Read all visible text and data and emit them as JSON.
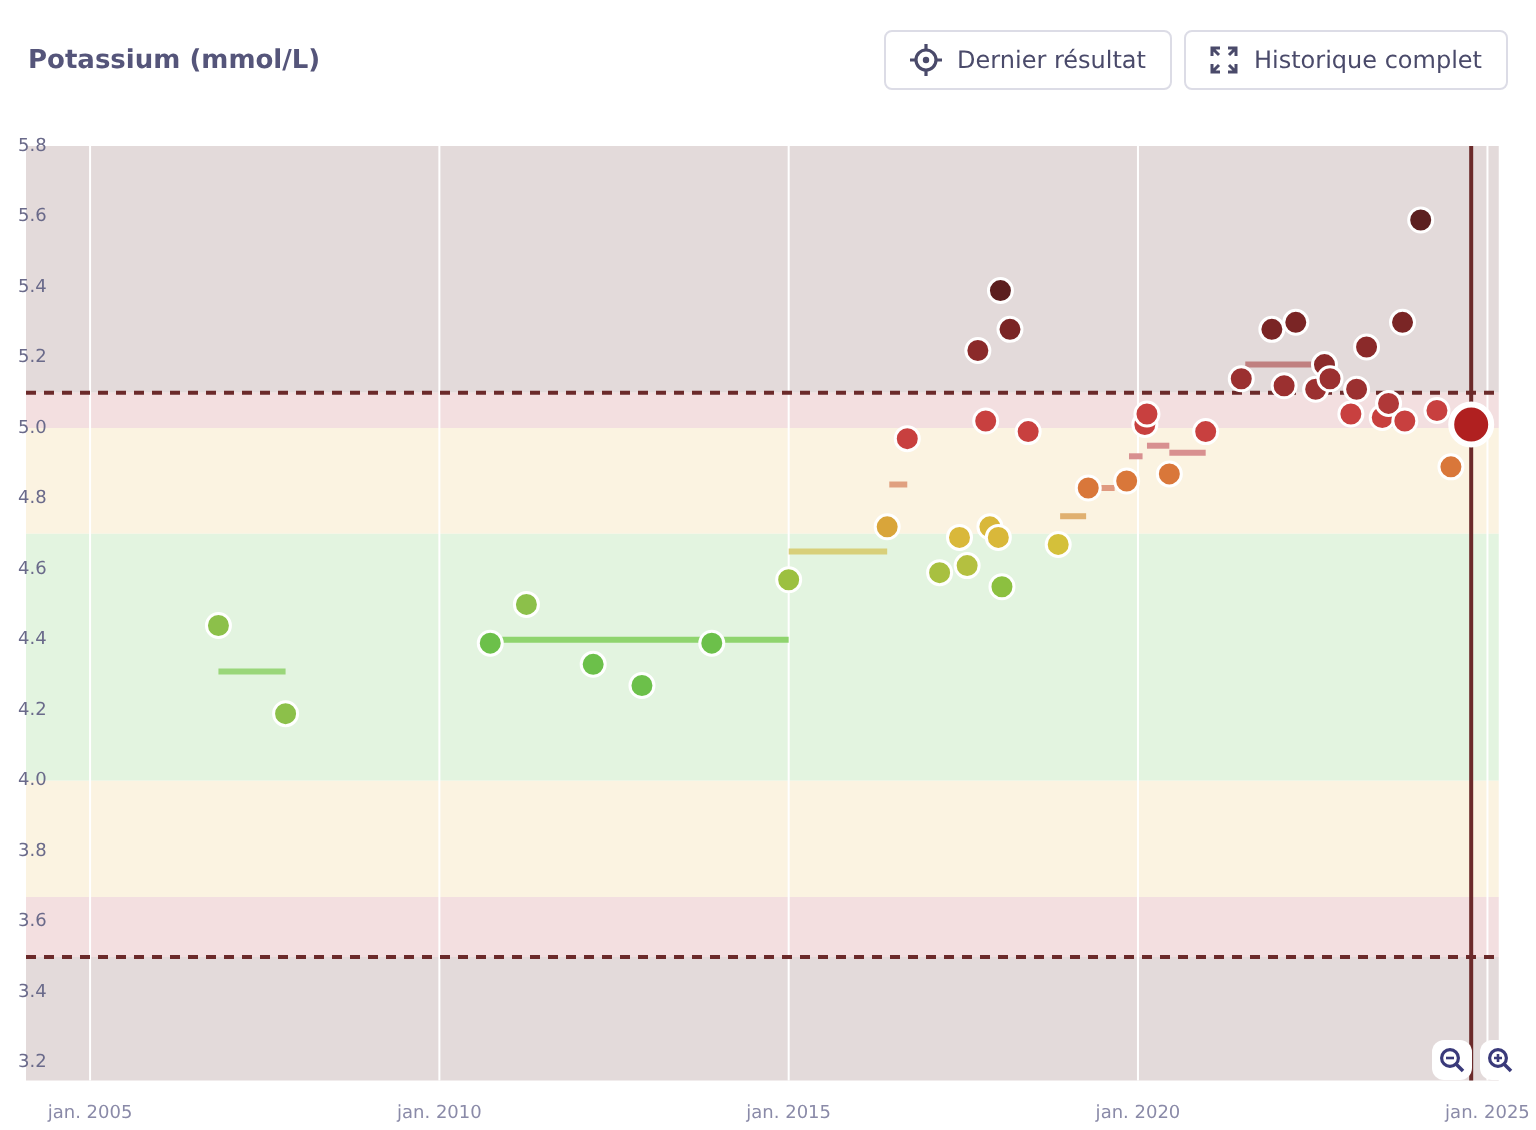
{
  "chart_data": {
    "type": "scatter",
    "title": "Potassium (mmol/L)",
    "annotations": [
      "Dernier résultat",
      "Historique complet"
    ],
    "xlim": [
      "2004-02-01",
      "2025-03-01"
    ],
    "ylim": [
      3.15,
      5.8
    ],
    "xticks": [
      {
        "value": "2005-01-01",
        "label": "jan. 2005"
      },
      {
        "value": "2010-01-01",
        "label": "jan. 2010"
      },
      {
        "value": "2015-01-01",
        "label": "jan. 2015"
      },
      {
        "value": "2020-01-01",
        "label": "jan. 2020"
      },
      {
        "value": "2025-01-01",
        "label": "jan. 2025"
      }
    ],
    "yticks": [
      3.2,
      3.4,
      3.6,
      3.8,
      {
        "value": 4,
        "label": "4.0"
      },
      4.2,
      4.4,
      4.6,
      4.8,
      {
        "value": 5,
        "label": "5.0"
      },
      5.2,
      5.4,
      5.6,
      5.8
    ],
    "grid": "x",
    "legend": false,
    "marker": "circle",
    "bands": [
      {
        "axis": "y",
        "from": 5.1,
        "to": 5.8,
        "color": "#e3dada"
      },
      {
        "axis": "y",
        "from": 5.0,
        "to": 5.1,
        "color": "#f3dfe0"
      },
      {
        "axis": "y",
        "from": 4.7,
        "to": 5.0,
        "color": "#fbf3e1"
      },
      {
        "axis": "y",
        "from": 4.0,
        "to": 4.7,
        "color": "#e3f4e0"
      },
      {
        "axis": "y",
        "from": 3.67,
        "to": 4.0,
        "color": "#fbf3e1"
      },
      {
        "axis": "y",
        "from": 3.5,
        "to": 3.67,
        "color": "#f3dfe0"
      },
      {
        "axis": "y",
        "from": 3.15,
        "to": 3.5,
        "color": "#e3dada"
      }
    ],
    "ref_lines": [
      {
        "axis": "y",
        "value": 5.1,
        "color": "#6b2a2a",
        "line_style": "dashed"
      },
      {
        "axis": "y",
        "value": 3.5,
        "color": "#6b2a2a",
        "line_style": "dashed"
      },
      {
        "axis": "x",
        "value": "2024-10-08",
        "color": "#6b2a2a",
        "line_style": "solid"
      }
    ],
    "series": [
      {
        "type": "line",
        "marker": "none",
        "color": "#9ad67a",
        "x": [
          "2006-11-03",
          "2007-10-20"
        ],
        "values": [
          4.31,
          4.31
        ]
      },
      {
        "type": "line",
        "marker": "none",
        "color": "#8fd46e",
        "x": [
          "2010-09-24",
          "2015-01-01"
        ],
        "values": [
          4.4,
          4.4
        ]
      },
      {
        "type": "line",
        "marker": "none",
        "color": "#d8cf7a",
        "x": [
          "2015-01-01",
          "2016-05-30"
        ],
        "values": [
          4.65,
          4.65
        ]
      },
      {
        "type": "line",
        "marker": "none",
        "color": "#e0a080",
        "x": [
          "2016-06-10",
          "2016-09-12"
        ],
        "values": [
          4.84,
          4.84
        ]
      },
      {
        "type": "line",
        "marker": "none",
        "color": "#e0b070",
        "x": [
          "2018-11-20",
          "2019-04-05"
        ],
        "values": [
          4.75,
          4.75
        ]
      },
      {
        "type": "line",
        "marker": "none",
        "color": "#e09a80",
        "x": [
          "2019-06-20",
          "2019-09-01"
        ],
        "values": [
          4.83,
          4.83
        ]
      },
      {
        "type": "line",
        "marker": "none",
        "color": "#d89090",
        "x": [
          "2019-11-15",
          "2020-01-25"
        ],
        "values": [
          4.92,
          4.92
        ]
      },
      {
        "type": "line",
        "marker": "none",
        "color": "#d89090",
        "x": [
          "2020-02-17",
          "2020-06-13"
        ],
        "values": [
          4.95,
          4.95
        ]
      },
      {
        "type": "line",
        "marker": "none",
        "color": "#d89090",
        "x": [
          "2020-06-13",
          "2020-12-20"
        ],
        "values": [
          4.93,
          4.93
        ]
      },
      {
        "type": "line",
        "marker": "none",
        "color": "#c08080",
        "x": [
          "2021-07-15",
          "2022-06-28"
        ],
        "values": [
          5.18,
          5.18
        ]
      },
      {
        "x": [
          "2006-11-03",
          "2007-10-20",
          "2010-09-24",
          "2011-04-01",
          "2012-03-15",
          "2012-11-25",
          "2013-11-25",
          "2015-01-01",
          "2016-05-30",
          "2016-09-12",
          "2017-02-28",
          "2017-06-12",
          "2017-07-22",
          "2017-09-16",
          "2017-10-27",
          "2017-11-18",
          "2018-01-01",
          "2018-01-12",
          "2018-01-20",
          "2018-03-03",
          "2018-06-06",
          "2018-11-10",
          "2019-04-16",
          "2019-11-03",
          "2020-02-06",
          "2020-02-17",
          "2020-06-13",
          "2020-12-20",
          "2021-06-24",
          "2021-12-01",
          "2022-02-03",
          "2022-04-05",
          "2022-07-18",
          "2022-09-02",
          "2022-10-01",
          "2023-01-18",
          "2023-02-17",
          "2023-04-10",
          "2023-07-01",
          "2023-08-03",
          "2023-10-15",
          "2023-10-27",
          "2024-01-18",
          "2024-04-12",
          "2024-06-24"
        ],
        "values": [
          4.44,
          4.19,
          4.39,
          4.5,
          4.33,
          4.27,
          4.39,
          4.57,
          4.72,
          4.97,
          4.59,
          4.69,
          4.61,
          5.22,
          5.02,
          4.72,
          4.69,
          5.39,
          4.55,
          5.28,
          4.99,
          4.67,
          4.83,
          4.85,
          5.01,
          5.04,
          4.87,
          4.99,
          5.14,
          5.28,
          5.12,
          5.3,
          5.11,
          5.18,
          5.14,
          5.04,
          5.11,
          5.23,
          5.03,
          5.07,
          5.3,
          5.02,
          5.59,
          5.05,
          4.89
        ],
        "colors": [
          "#8cc04a",
          "#8cc04a",
          "#6cc04a",
          "#8cc04a",
          "#6cc04a",
          "#6cc04a",
          "#6cc04a",
          "#9cc040",
          "#d9a53a",
          "#c8403f",
          "#a8c040",
          "#d9b83a",
          "#b4c040",
          "#8b2a2a",
          "#c8403f",
          "#d9b83a",
          "#d9b83a",
          "#5c1f1f",
          "#8cc040",
          "#7a2525",
          "#c8403f",
          "#d4c03a",
          "#d9773a",
          "#d9773a",
          "#c8403f",
          "#c8403f",
          "#d9773a",
          "#c8403f",
          "#9b3030",
          "#7a2525",
          "#9b3030",
          "#7a2525",
          "#9b3030",
          "#8b2a2a",
          "#9b3030",
          "#c8403f",
          "#9b3030",
          "#8b2a2a",
          "#c8403f",
          "#b03838",
          "#7a2525",
          "#c8403f",
          "#5c1f1f",
          "#c8403f",
          "#d9773a"
        ]
      },
      {
        "x": [
          "2024-10-08"
        ],
        "values": [
          5.01
        ],
        "colors": [
          "#b02020"
        ]
      }
    ]
  }
}
